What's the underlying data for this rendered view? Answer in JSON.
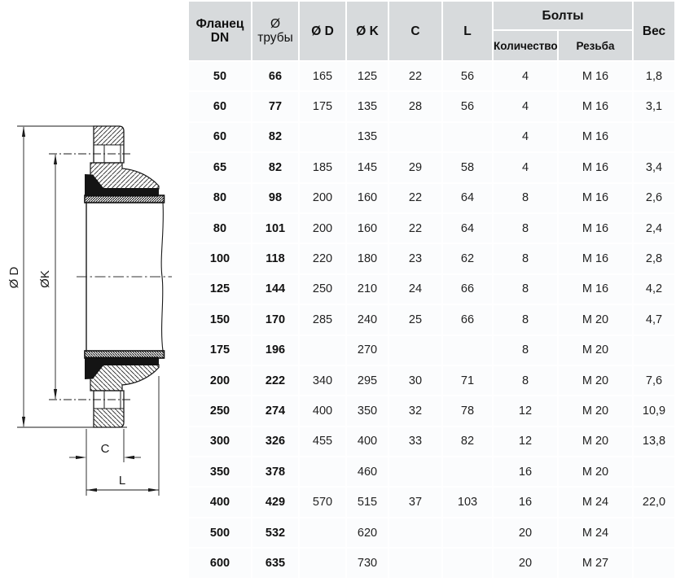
{
  "colors": {
    "header_bg": "#d7dadc",
    "row_bg": "#fbfcfd",
    "grid_gap": "#e9ebec",
    "ink": "#1b1b1b"
  },
  "drawing": {
    "dim_d": "Ø D",
    "dim_k": "ØK",
    "dim_c": "C",
    "dim_l": "L"
  },
  "table": {
    "header": {
      "flange": [
        "Фланец",
        "DN"
      ],
      "pipe": [
        "Ø",
        "трубы"
      ],
      "d": "Ø D",
      "k": "Ø K",
      "c": "C",
      "l": "L",
      "bolts": "Болты",
      "qty": "Количество",
      "thread": "Резьба",
      "weight": "Вес"
    },
    "rows": [
      [
        "50",
        "66",
        "165",
        "125",
        "22",
        "56",
        "4",
        "M 16",
        "1,8"
      ],
      [
        "60",
        "77",
        "175",
        "135",
        "28",
        "56",
        "4",
        "M 16",
        "3,1"
      ],
      [
        "60",
        "82",
        "",
        "135",
        "",
        "",
        "4",
        "M 16",
        ""
      ],
      [
        "65",
        "82",
        "185",
        "145",
        "29",
        "58",
        "4",
        "M 16",
        "3,4"
      ],
      [
        "80",
        "98",
        "200",
        "160",
        "22",
        "64",
        "8",
        "M 16",
        "2,6"
      ],
      [
        "80",
        "101",
        "200",
        "160",
        "22",
        "64",
        "8",
        "M 16",
        "2,4"
      ],
      [
        "100",
        "118",
        "220",
        "180",
        "23",
        "62",
        "8",
        "M 16",
        "2,8"
      ],
      [
        "125",
        "144",
        "250",
        "210",
        "24",
        "66",
        "8",
        "M 16",
        "4,2"
      ],
      [
        "150",
        "170",
        "285",
        "240",
        "25",
        "66",
        "8",
        "M 20",
        "4,7"
      ],
      [
        "175",
        "196",
        "",
        "270",
        "",
        "",
        "8",
        "M 20",
        ""
      ],
      [
        "200",
        "222",
        "340",
        "295",
        "30",
        "71",
        "8",
        "M 20",
        "7,6"
      ],
      [
        "250",
        "274",
        "400",
        "350",
        "32",
        "78",
        "12",
        "M 20",
        "10,9"
      ],
      [
        "300",
        "326",
        "455",
        "400",
        "33",
        "82",
        "12",
        "M 20",
        "13,8"
      ],
      [
        "350",
        "378",
        "",
        "460",
        "",
        "",
        "16",
        "M 20",
        ""
      ],
      [
        "400",
        "429",
        "570",
        "515",
        "37",
        "103",
        "16",
        "M 24",
        "22,0"
      ],
      [
        "500",
        "532",
        "",
        "620",
        "",
        "",
        "20",
        "M 24",
        ""
      ],
      [
        "600",
        "635",
        "",
        "730",
        "",
        "",
        "20",
        "M 27",
        ""
      ]
    ]
  }
}
